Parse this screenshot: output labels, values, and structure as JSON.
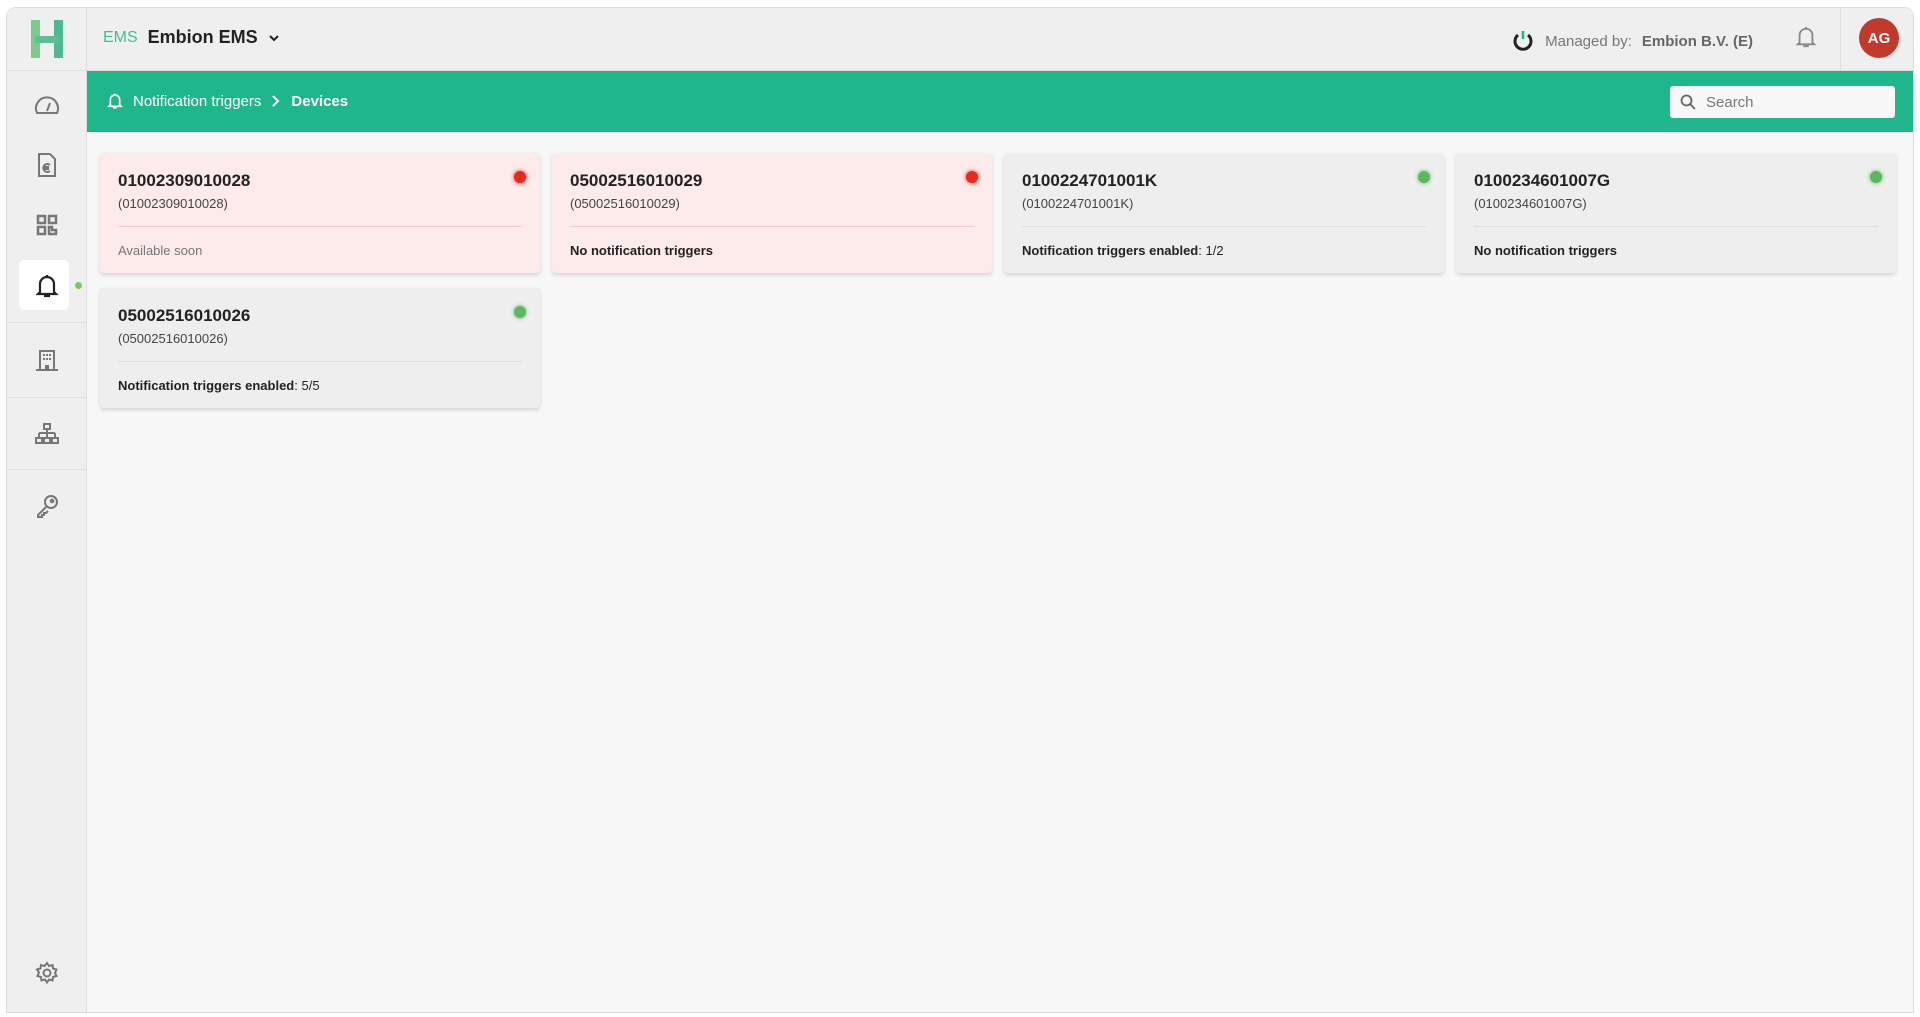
{
  "header": {
    "app_short": "EMS",
    "app_name": "Embion EMS",
    "managed_label": "Managed by:",
    "managed_value": "Embion B.V. (E)",
    "avatar_initials": "AG"
  },
  "breadcrumb": {
    "parent": "Notification triggers",
    "current": "Devices"
  },
  "search": {
    "placeholder": "Search",
    "value": ""
  },
  "sidebar": {
    "items": [
      {
        "icon": "dashboard-gauge-icon"
      },
      {
        "icon": "invoice-euro-icon"
      },
      {
        "icon": "qr-code-icon"
      },
      {
        "icon": "bell-icon",
        "active": true
      },
      {
        "icon": "building-icon"
      },
      {
        "icon": "hierarchy-icon"
      },
      {
        "icon": "key-icon"
      },
      {
        "icon": "gear-icon"
      }
    ]
  },
  "colors": {
    "accent": "#20b68b",
    "error_dot": "#e8291c",
    "ok_dot": "#5cb85c",
    "avatar": "#c0392b"
  },
  "devices": [
    {
      "title": "01002309010028",
      "subtitle": "(01002309010028)",
      "status": "error",
      "label": "Available soon",
      "value": ""
    },
    {
      "title": "05002516010029",
      "subtitle": "(05002516010029)",
      "status": "error",
      "label": "No notification triggers",
      "value": ""
    },
    {
      "title": "0100224701001K",
      "subtitle": "(0100224701001K)",
      "status": "ok",
      "label": "Notification triggers enabled",
      "value": ": 1/2"
    },
    {
      "title": "0100234601007G",
      "subtitle": "(0100234601007G)",
      "status": "ok",
      "label": "No notification triggers",
      "value": ""
    },
    {
      "title": "05002516010026",
      "subtitle": "(05002516010026)",
      "status": "ok",
      "label": "Notification triggers enabled",
      "value": ": 5/5"
    }
  ]
}
